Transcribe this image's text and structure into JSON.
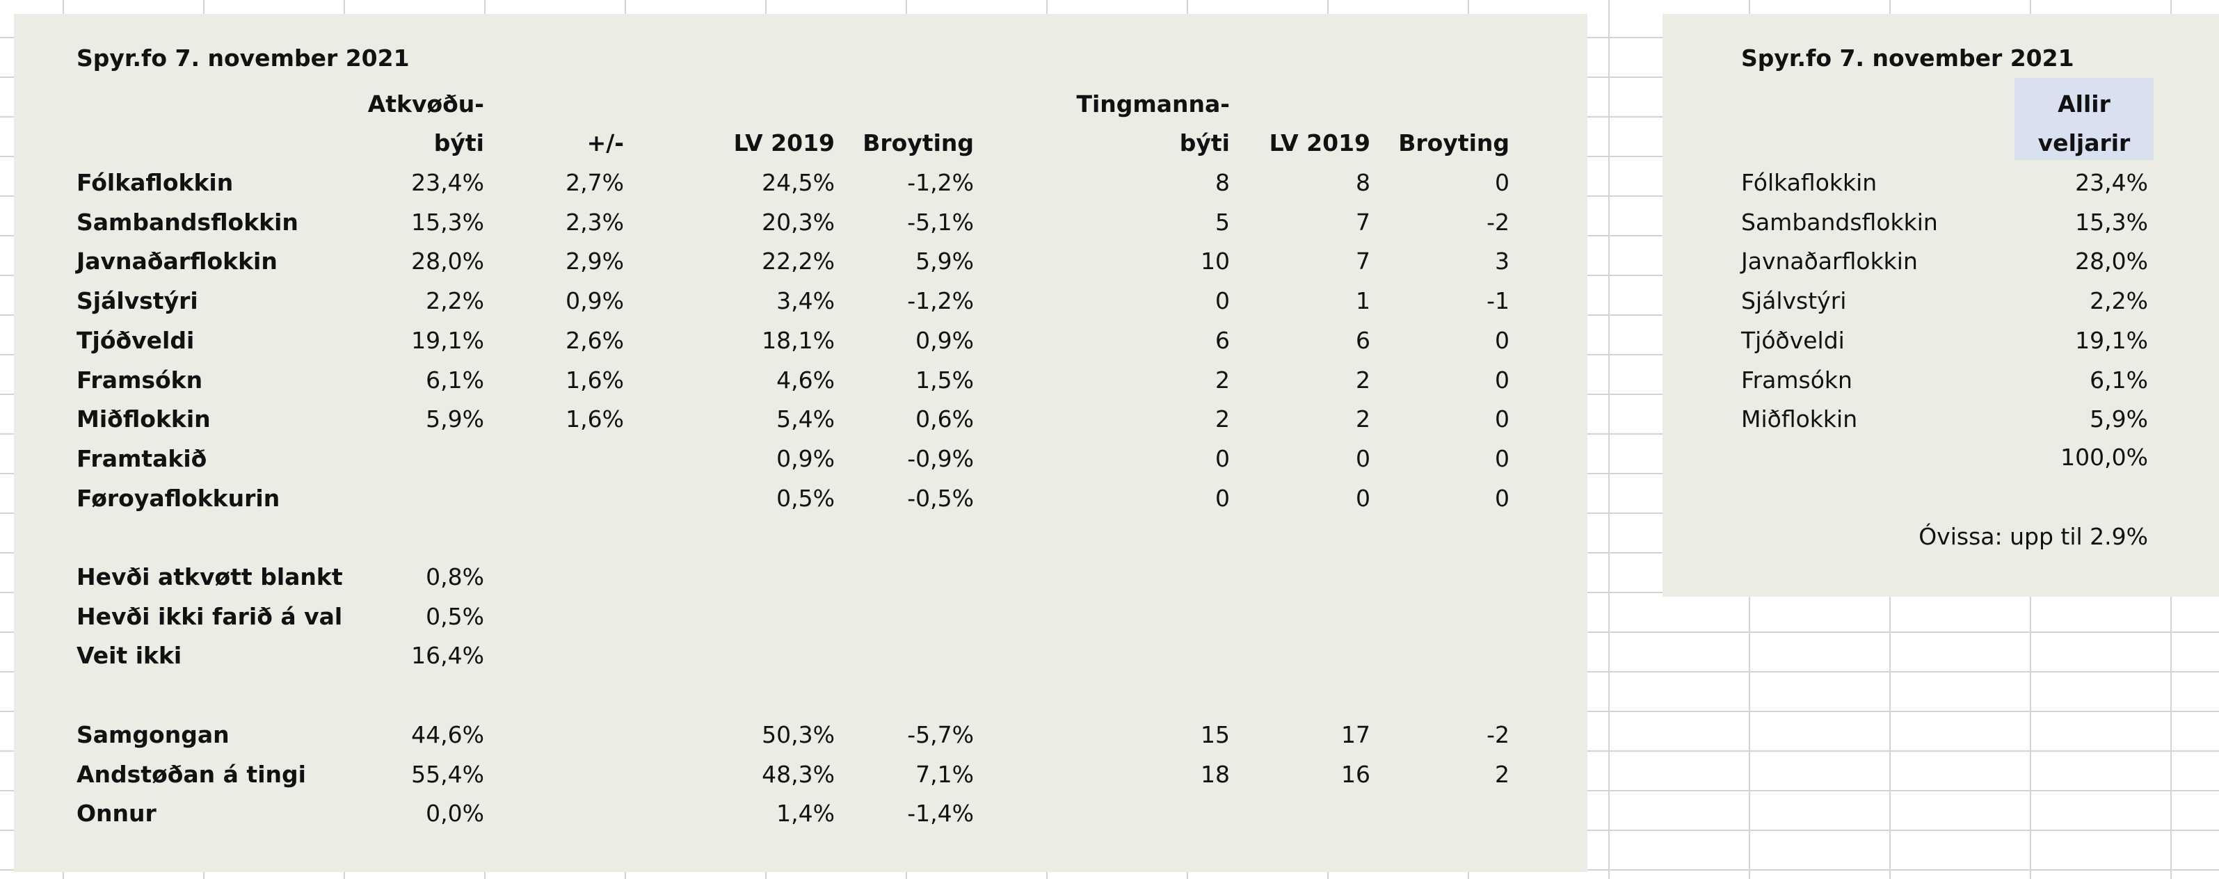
{
  "left_table": {
    "title": "Spyr.fo 7. november 2021",
    "headers": {
      "atkvodubyti_line1": "Atkvøðu-",
      "atkvodubyti_line2": "býti",
      "plusminus": "+/-",
      "lv2019": "LV 2019",
      "broyting": "Broyting",
      "tingmannabyti_line1": "Tingmanna-",
      "tingmannabyti_line2": "býti",
      "lv2019_seats": "LV 2019",
      "broyting_seats": "Broyting"
    },
    "parties": [
      {
        "name": "Fólkaflokkin",
        "vote": "23,4%",
        "pm": "2,7%",
        "lv": "24,5%",
        "change": "-1,2%",
        "seats": "8",
        "lv_seats": "8",
        "seat_change": "0"
      },
      {
        "name": "Sambandsflokkin",
        "vote": "15,3%",
        "pm": "2,3%",
        "lv": "20,3%",
        "change": "-5,1%",
        "seats": "5",
        "lv_seats": "7",
        "seat_change": "-2"
      },
      {
        "name": "Javnaðarflokkin",
        "vote": "28,0%",
        "pm": "2,9%",
        "lv": "22,2%",
        "change": "5,9%",
        "seats": "10",
        "lv_seats": "7",
        "seat_change": "3"
      },
      {
        "name": "Sjálvstýri",
        "vote": "2,2%",
        "pm": "0,9%",
        "lv": "3,4%",
        "change": "-1,2%",
        "seats": "0",
        "lv_seats": "1",
        "seat_change": "-1"
      },
      {
        "name": "Tjóðveldi",
        "vote": "19,1%",
        "pm": "2,6%",
        "lv": "18,1%",
        "change": "0,9%",
        "seats": "6",
        "lv_seats": "6",
        "seat_change": "0"
      },
      {
        "name": "Framsókn",
        "vote": "6,1%",
        "pm": "1,6%",
        "lv": "4,6%",
        "change": "1,5%",
        "seats": "2",
        "lv_seats": "2",
        "seat_change": "0"
      },
      {
        "name": "Miðflokkin",
        "vote": "5,9%",
        "pm": "1,6%",
        "lv": "5,4%",
        "change": "0,6%",
        "seats": "2",
        "lv_seats": "2",
        "seat_change": "0"
      },
      {
        "name": "Framtakið",
        "vote": "",
        "pm": "",
        "lv": "0,9%",
        "change": "-0,9%",
        "seats": "0",
        "lv_seats": "0",
        "seat_change": "0"
      },
      {
        "name": "Føroyaflokkurin",
        "vote": "",
        "pm": "",
        "lv": "0,5%",
        "change": "-0,5%",
        "seats": "0",
        "lv_seats": "0",
        "seat_change": "0"
      }
    ],
    "others": [
      {
        "name": "Hevði atkvøtt blankt",
        "vote": "0,8%"
      },
      {
        "name": "Hevði ikki farið á val",
        "vote": "0,5%"
      },
      {
        "name": "Veit ikki",
        "vote": "16,4%"
      }
    ],
    "blocs": [
      {
        "name": "Samgongan",
        "vote": "44,6%",
        "lv": "50,3%",
        "change": "-5,7%",
        "seats": "15",
        "lv_seats": "17",
        "seat_change": "-2"
      },
      {
        "name": "Andstøðan á tingi",
        "vote": "55,4%",
        "lv": "48,3%",
        "change": "7,1%",
        "seats": "18",
        "lv_seats": "16",
        "seat_change": "2"
      },
      {
        "name": "Onnur",
        "vote": "0,0%",
        "lv": "1,4%",
        "change": "-1,4%",
        "seats": "",
        "lv_seats": "",
        "seat_change": ""
      }
    ]
  },
  "right_table": {
    "title": "Spyr.fo 7. november 2021",
    "header_line1": "Allir",
    "header_line2": "veljarir",
    "header_bg": "#d9e1f0",
    "rows": [
      {
        "name": "Fólkaflokkin",
        "value": "23,4%"
      },
      {
        "name": "Sambandsflokkin",
        "value": "15,3%"
      },
      {
        "name": "Javnaðarflokkin",
        "value": "28,0%"
      },
      {
        "name": "Sjálvstýri",
        "value": "2,2%"
      },
      {
        "name": "Tjóðveldi",
        "value": "19,1%"
      },
      {
        "name": "Framsókn",
        "value": "6,1%"
      },
      {
        "name": "Miðflokkin",
        "value": "5,9%"
      }
    ],
    "total": "100,0%",
    "uncertainty": "Óvissa: upp til 2.9%"
  }
}
